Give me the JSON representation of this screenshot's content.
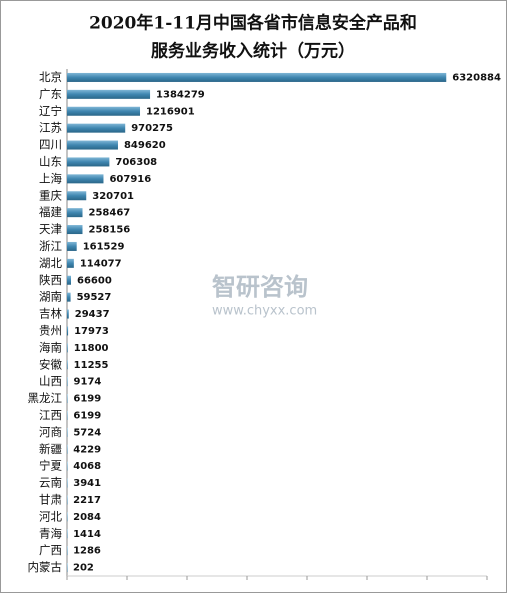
{
  "chart_data": {
    "type": "barh",
    "title": [
      "2020年1-11月中国各省市信息安全产品和",
      "服务业务收入统计（万元）"
    ],
    "watermark": [
      "智研咨询",
      "www.chyxx.com"
    ],
    "categories": [
      "北京",
      "广东",
      "辽宁",
      "江苏",
      "四川",
      "山东",
      "上海",
      "重庆",
      "福建",
      "天津",
      "浙江",
      "湖北",
      "陕西",
      "湖南",
      "吉林",
      "贵州",
      "海南",
      "安徽",
      "山西",
      "黑龙江",
      "江西",
      "河商",
      "新疆",
      "宁夏",
      "云南",
      "甘肃",
      "河北",
      "青海",
      "广西",
      "内蒙古"
    ],
    "values": [
      6320884,
      1384279,
      1216901,
      970275,
      849620,
      706308,
      607916,
      320701,
      258467,
      258156,
      161529,
      114077,
      66600,
      59527,
      29437,
      17973,
      11800,
      11255,
      9174,
      6199,
      6199,
      5724,
      4229,
      4068,
      3941,
      2217,
      2084,
      1414,
      1286,
      202
    ],
    "xlim": [
      0,
      7000000
    ],
    "xticks": [
      0,
      1000000,
      2000000,
      3000000,
      4000000,
      5000000,
      6000000,
      7000000
    ]
  }
}
